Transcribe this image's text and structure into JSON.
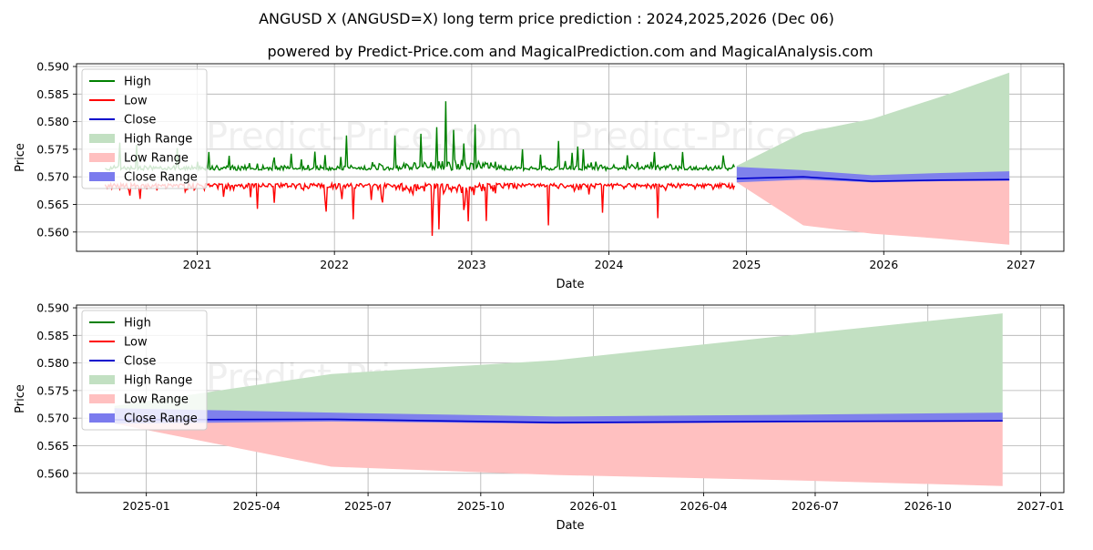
{
  "title": "ANGUSD X (ANGUSD=X) long term price prediction : 2024,2025,2026 (Dec 06)",
  "subtitle": "powered by Predict-Price.com and MagicalPrediction.com and MagicalAnalysis.com",
  "watermark": "Predict-Price.com",
  "colors": {
    "high": "#008000",
    "low": "#ff0000",
    "close": "#0000cc",
    "high_range": "#c2e0c2",
    "low_range": "#ffc0c0",
    "close_range": "#7b7bee"
  },
  "legend": {
    "placement": "top-left",
    "items": [
      {
        "label": "High",
        "kind": "line",
        "color": "#008000"
      },
      {
        "label": "Low",
        "kind": "line",
        "color": "#ff0000"
      },
      {
        "label": "Close",
        "kind": "line",
        "color": "#0000cc"
      },
      {
        "label": "High Range",
        "kind": "patch",
        "color": "#c2e0c2"
      },
      {
        "label": "Low Range",
        "kind": "patch",
        "color": "#ffc0c0"
      },
      {
        "label": "Close Range",
        "kind": "patch",
        "color": "#7b7bee"
      }
    ]
  },
  "chart_data": [
    {
      "type": "line",
      "xlabel": "Date",
      "ylabel": "Price",
      "xlim": [
        "2020-02-15",
        "2027-04-25"
      ],
      "ylim": [
        0.5565,
        0.5905
      ],
      "xticks": [
        {
          "date": "2021-01-01",
          "label": "2021"
        },
        {
          "date": "2022-01-01",
          "label": "2022"
        },
        {
          "date": "2023-01-01",
          "label": "2023"
        },
        {
          "date": "2024-01-01",
          "label": "2024"
        },
        {
          "date": "2025-01-01",
          "label": "2025"
        },
        {
          "date": "2026-01-01",
          "label": "2026"
        },
        {
          "date": "2027-01-01",
          "label": "2027"
        }
      ],
      "yticks": [
        {
          "value": 0.56,
          "label": "0.560"
        },
        {
          "value": 0.565,
          "label": "0.565"
        },
        {
          "value": 0.57,
          "label": "0.570"
        },
        {
          "value": 0.575,
          "label": "0.575"
        },
        {
          "value": 0.58,
          "label": "0.580"
        },
        {
          "value": 0.585,
          "label": "0.585"
        },
        {
          "value": 0.59,
          "label": "0.590"
        }
      ],
      "grid": true,
      "history": {
        "start": "2020-05-01",
        "end": "2024-12-01",
        "close": 0.5695,
        "high_base": 0.5712,
        "low_base": 0.5688,
        "high_max": {
          "date": "2022-10-25",
          "value": 0.5837
        },
        "low_min": {
          "date": "2022-09-18",
          "value": 0.5593
        },
        "high_spikes": [
          {
            "date": "2020-06-10",
            "value": 0.5762
          },
          {
            "date": "2020-07-25",
            "value": 0.5758
          },
          {
            "date": "2020-11-10",
            "value": 0.5752
          },
          {
            "date": "2022-02-01",
            "value": 0.5775
          },
          {
            "date": "2022-06-10",
            "value": 0.5775
          },
          {
            "date": "2022-08-20",
            "value": 0.5778
          },
          {
            "date": "2022-10-01",
            "value": 0.579
          },
          {
            "date": "2022-10-25",
            "value": 0.5837
          },
          {
            "date": "2022-11-15",
            "value": 0.5785
          },
          {
            "date": "2023-01-10",
            "value": 0.5795
          },
          {
            "date": "2023-05-15",
            "value": 0.575
          },
          {
            "date": "2023-08-20",
            "value": 0.5765
          },
          {
            "date": "2023-10-10",
            "value": 0.5755
          },
          {
            "date": "2024-05-01",
            "value": 0.5745
          },
          {
            "date": "2024-07-15",
            "value": 0.5745
          }
        ],
        "low_spikes": [
          {
            "date": "2020-08-01",
            "value": 0.566
          },
          {
            "date": "2021-06-10",
            "value": 0.5642
          },
          {
            "date": "2021-12-10",
            "value": 0.5637
          },
          {
            "date": "2022-02-20",
            "value": 0.5623
          },
          {
            "date": "2022-09-18",
            "value": 0.5593
          },
          {
            "date": "2022-10-05",
            "value": 0.5605
          },
          {
            "date": "2022-12-10",
            "value": 0.564
          },
          {
            "date": "2023-02-10",
            "value": 0.562
          },
          {
            "date": "2023-07-25",
            "value": 0.5612
          },
          {
            "date": "2023-12-15",
            "value": 0.5635
          },
          {
            "date": "2024-05-10",
            "value": 0.5625
          }
        ]
      },
      "forecast": {
        "dates": [
          "2024-12-06",
          "2025-06-01",
          "2025-12-01",
          "2026-06-01",
          "2026-12-01"
        ],
        "close": [
          0.5697,
          0.57,
          0.5692,
          0.5694,
          0.5695
        ],
        "high_range": [
          0.572,
          0.578,
          0.5805,
          0.5845,
          0.5889
        ],
        "low_range": [
          0.569,
          0.5612,
          0.5597,
          0.5588,
          0.5577
        ],
        "close_range_upper": [
          0.5718,
          0.5712,
          0.5703,
          0.5707,
          0.571
        ],
        "close_range_lower": [
          0.569,
          0.5695,
          0.569,
          0.5692,
          0.5693
        ]
      }
    },
    {
      "type": "line",
      "xlabel": "Date",
      "ylabel": "Price",
      "xlim": [
        "2024-11-05",
        "2027-01-20"
      ],
      "ylim": [
        0.5565,
        0.5905
      ],
      "xticks": [
        {
          "date": "2025-01-01",
          "label": "2025-01"
        },
        {
          "date": "2025-04-01",
          "label": "2025-04"
        },
        {
          "date": "2025-07-01",
          "label": "2025-07"
        },
        {
          "date": "2025-10-01",
          "label": "2025-10"
        },
        {
          "date": "2026-01-01",
          "label": "2026-01"
        },
        {
          "date": "2026-04-01",
          "label": "2026-04"
        },
        {
          "date": "2026-07-01",
          "label": "2026-07"
        },
        {
          "date": "2026-10-01",
          "label": "2026-10"
        },
        {
          "date": "2027-01-01",
          "label": "2027-01"
        }
      ],
      "yticks": [
        {
          "value": 0.56,
          "label": "0.560"
        },
        {
          "value": 0.565,
          "label": "0.565"
        },
        {
          "value": 0.57,
          "label": "0.570"
        },
        {
          "value": 0.575,
          "label": "0.575"
        },
        {
          "value": 0.58,
          "label": "0.580"
        },
        {
          "value": 0.585,
          "label": "0.585"
        },
        {
          "value": 0.59,
          "label": "0.590"
        }
      ],
      "grid": true,
      "forecast": {
        "dates": [
          "2024-12-06",
          "2025-06-01",
          "2025-12-01",
          "2026-06-01",
          "2026-12-01"
        ],
        "close": [
          0.5697,
          0.5698,
          0.5692,
          0.5694,
          0.5695
        ],
        "high_range": [
          0.5722,
          0.578,
          0.5805,
          0.5848,
          0.589
        ],
        "low_range": [
          0.569,
          0.5612,
          0.5597,
          0.5588,
          0.5577
        ],
        "close_range_upper": [
          0.5718,
          0.571,
          0.5703,
          0.5706,
          0.571
        ],
        "close_range_lower": [
          0.569,
          0.5694,
          0.569,
          0.5692,
          0.5694
        ]
      }
    }
  ]
}
